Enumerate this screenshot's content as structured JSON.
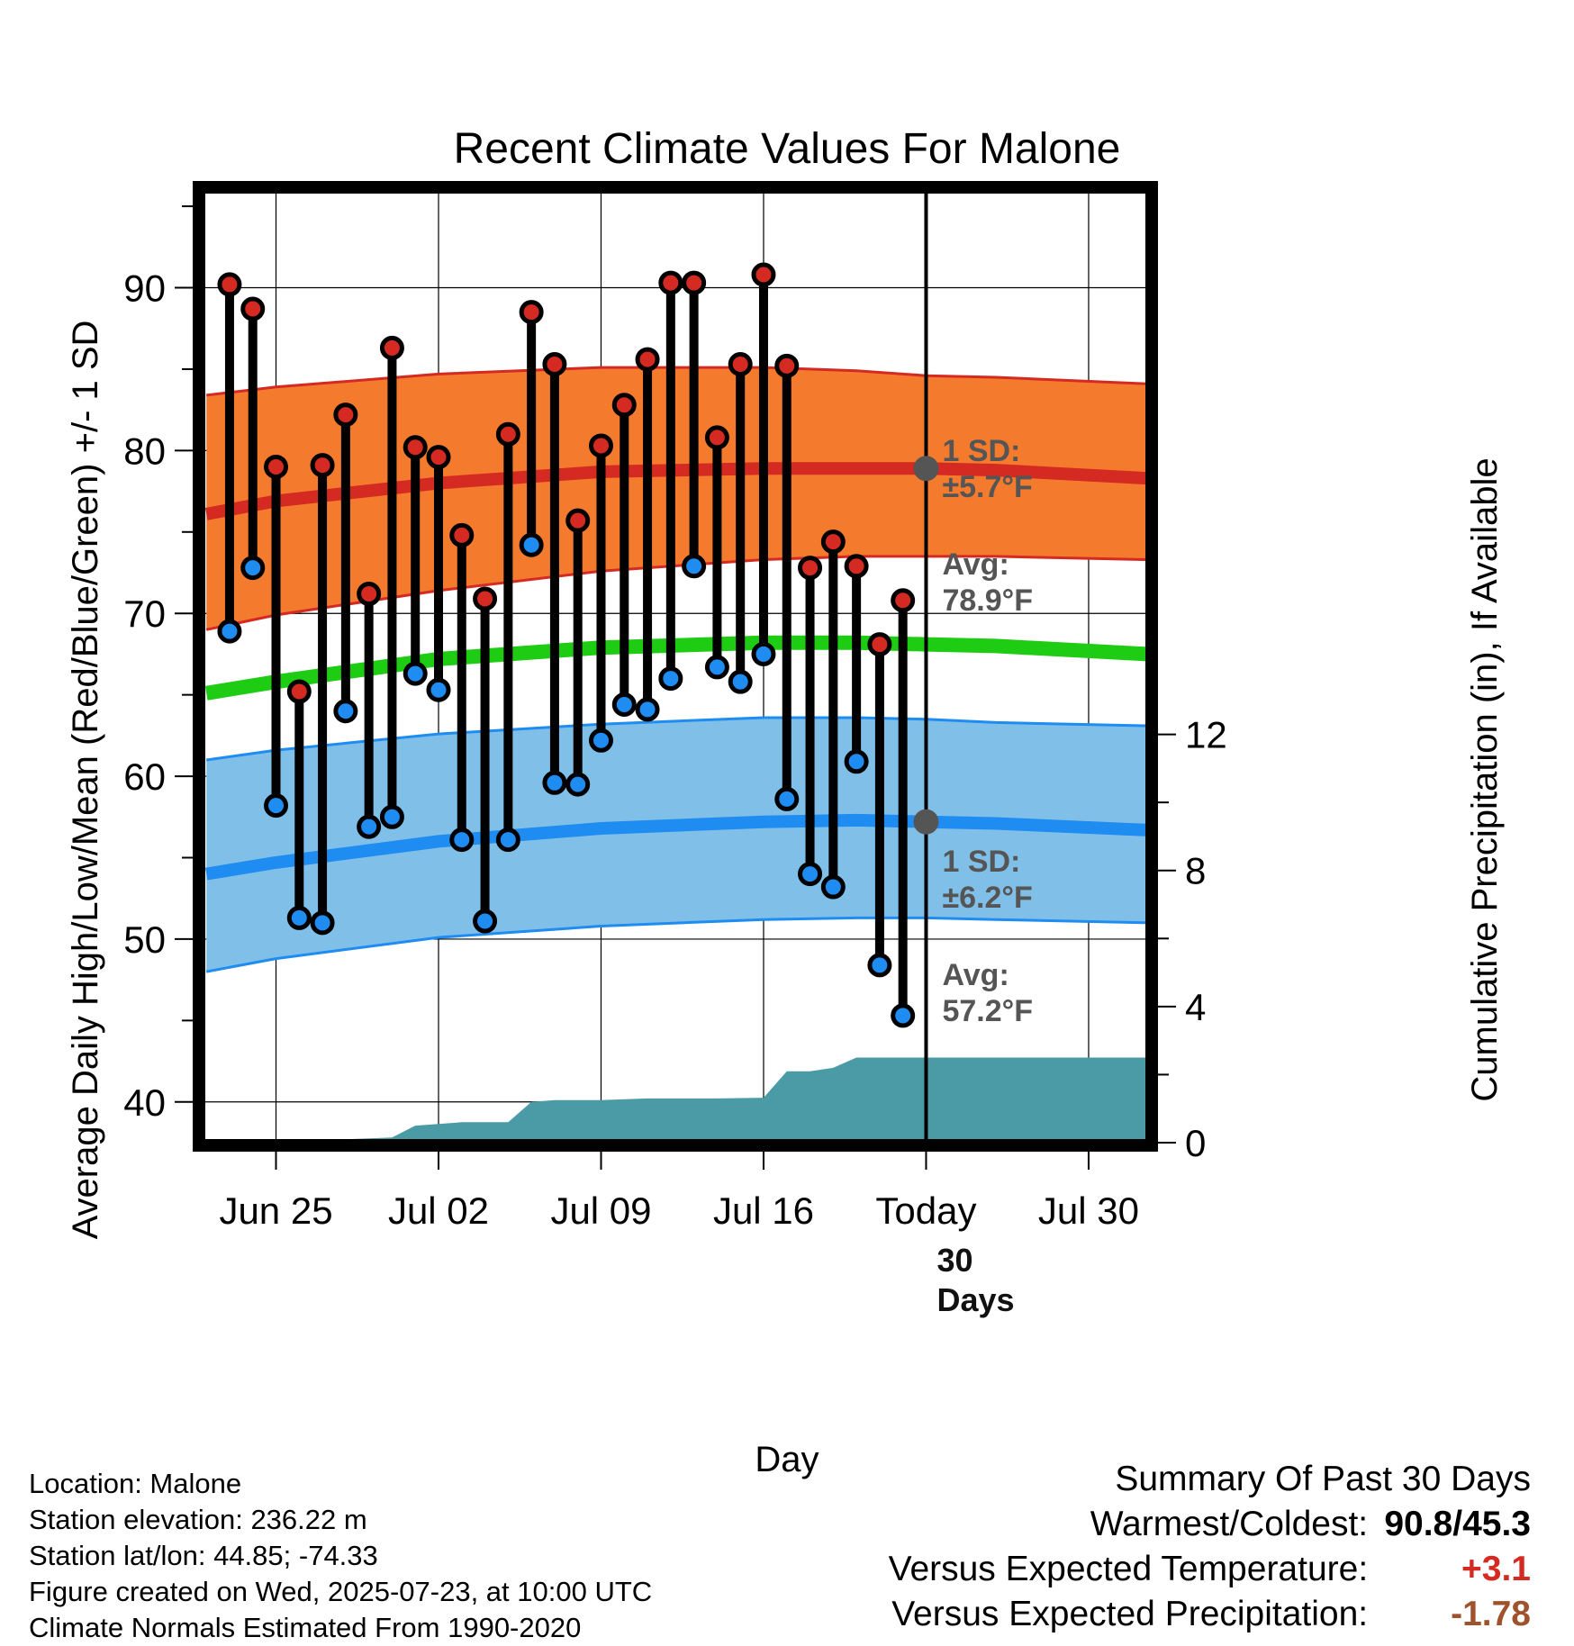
{
  "chart_data": {
    "type": "line",
    "title": "Recent Climate Values For Malone",
    "xlabel": "Day",
    "ylabel": "Average Daily High/Low/Mean (Red/Blue/Green) +/- 1 SD",
    "y2label": "Cumulative Precipitation (in), If Available",
    "ylim": [
      37.5,
      96
    ],
    "y2lim": [
      0,
      28
    ],
    "y_ticks": [
      "40",
      "50",
      "60",
      "70",
      "80",
      "90"
    ],
    "y2_ticks": [
      "0",
      "4",
      "8",
      "12"
    ],
    "x_ticks": [
      "Jun 25",
      "Jul 02",
      "Jul 09",
      "Jul 16",
      "Today",
      "Jul 30"
    ],
    "x_tick_days": [
      -28,
      -21,
      -14,
      -7,
      0,
      7
    ],
    "xlim": [
      -31.2,
      9.6
    ],
    "grid": true,
    "today_label": "Today",
    "daily_high": [
      90.2,
      88.7,
      79.0,
      65.2,
      79.1,
      82.2,
      71.2,
      86.3,
      80.2,
      79.6,
      74.8,
      70.9,
      81.0,
      88.5,
      85.3,
      75.7,
      80.3,
      82.8,
      85.6,
      90.3,
      90.3,
      80.8,
      85.3,
      90.8,
      85.2,
      72.8,
      74.4,
      72.9,
      68.1,
      70.8
    ],
    "daily_low": [
      68.9,
      72.8,
      58.2,
      51.3,
      51.0,
      64.0,
      56.9,
      57.5,
      66.3,
      65.3,
      56.1,
      51.1,
      56.1,
      74.2,
      59.6,
      59.5,
      62.2,
      64.4,
      64.1,
      66.0,
      72.9,
      66.7,
      65.8,
      67.5,
      58.6,
      54.0,
      53.2,
      60.9,
      48.4,
      45.3
    ],
    "normal_high": {
      "days": [
        -31,
        -28,
        -21,
        -14,
        -7,
        -3,
        0,
        3,
        9.5
      ],
      "values": [
        76.1,
        76.9,
        78.0,
        78.7,
        78.9,
        78.9,
        78.9,
        78.8,
        78.3
      ]
    },
    "normal_high_sd_band": {
      "days": [
        -31,
        -28,
        -21,
        -14,
        -7,
        -3,
        0,
        3,
        9.5
      ],
      "upper": [
        83.4,
        83.9,
        84.7,
        85.1,
        85.1,
        84.9,
        84.6,
        84.5,
        84.1
      ],
      "lower": [
        69.0,
        69.9,
        71.4,
        72.6,
        73.3,
        73.5,
        73.5,
        73.5,
        73.3
      ]
    },
    "normal_low": {
      "days": [
        -31,
        -28,
        -21,
        -14,
        -7,
        -3,
        0,
        3,
        9.5
      ],
      "values": [
        54.0,
        54.7,
        56.0,
        56.8,
        57.2,
        57.3,
        57.2,
        57.1,
        56.7
      ]
    },
    "normal_low_sd_band": {
      "days": [
        -31,
        -28,
        -21,
        -14,
        -7,
        -3,
        0,
        3,
        9.5
      ],
      "upper": [
        61.0,
        61.6,
        62.6,
        63.2,
        63.6,
        63.6,
        63.5,
        63.3,
        63.1
      ],
      "lower": [
        48.0,
        48.8,
        50.1,
        50.8,
        51.2,
        51.3,
        51.3,
        51.2,
        51.0
      ]
    },
    "normal_mean": {
      "days": [
        -31,
        -28,
        -21,
        -14,
        -7,
        -3,
        0,
        3,
        9.5
      ],
      "values": [
        65.1,
        65.8,
        67.2,
        67.9,
        68.2,
        68.2,
        68.1,
        68.0,
        67.5
      ]
    },
    "cumulative_precip": {
      "days": [
        -31,
        -26,
        -25,
        -23,
        -22,
        -21,
        -20,
        -18,
        -17,
        -16,
        -15,
        -14,
        -12,
        -10,
        -9,
        -7,
        -6,
        -5,
        -4,
        -3,
        0,
        9.5
      ],
      "values": [
        0.0,
        0.0,
        0.1,
        0.15,
        0.5,
        0.55,
        0.6,
        0.6,
        1.2,
        1.25,
        1.25,
        1.25,
        1.3,
        1.3,
        1.3,
        1.32,
        2.1,
        2.1,
        2.2,
        2.5,
        2.5,
        2.5
      ]
    },
    "annotations": {
      "high_sd": "1 SD:\n±5.7°F",
      "high_avg": "Avg:\n78.9°F",
      "low_sd": "1 SD:\n±6.2°F",
      "low_avg": "Avg:\n57.2°F",
      "period": "30\nDays"
    },
    "colors": {
      "high_band": "#f47a2e",
      "high_line": "#d42a22",
      "low_band": "#80c0e8",
      "low_line": "#1e8cf0",
      "mean_line": "#1fcc14",
      "precip": "#4a9ba6",
      "high_marker": "#d42a22",
      "low_marker": "#1e8cf0",
      "avg_dot": "#555555"
    }
  },
  "info": {
    "location": "Location: Malone",
    "elevation": "Station elevation: 236.22 m",
    "latlon": "Station lat/lon: 44.85; -74.33",
    "created": "Figure created on Wed, 2025-07-23, at 10:00 UTC",
    "normals": "Climate Normals Estimated From 1990-2020"
  },
  "summary": {
    "heading": "Summary Of Past 30 Days",
    "warmest_label": "Warmest/Coldest:",
    "warmest_value": "90.8/45.3",
    "temp_label": "Versus Expected Temperature:",
    "temp_value": "+3.1",
    "temp_color": "#d42a22",
    "precip_label": "Versus Expected Precipitation:",
    "precip_value": "-1.78",
    "precip_color": "#a0522d"
  }
}
